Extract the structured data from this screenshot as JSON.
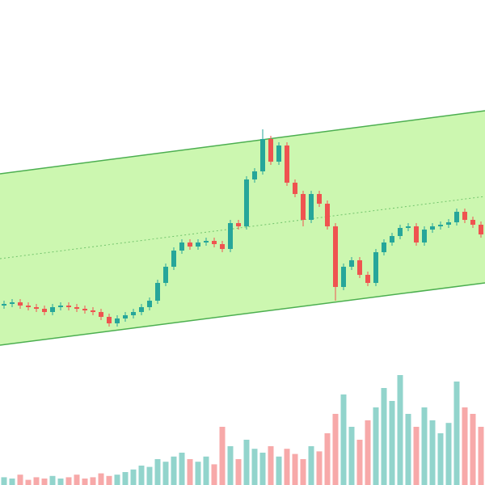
{
  "chart_data": {
    "type": "candlestick",
    "open": [
      15.5,
      16,
      16.5,
      15.5,
      15,
      14.5,
      13.5,
      15,
      15.5,
      15,
      14.5,
      14,
      13.5,
      12,
      10,
      11.5,
      12.5,
      13.5,
      15,
      17,
      22.5,
      27.5,
      32.5,
      35,
      33.75,
      35,
      35.5,
      34.5,
      33,
      41,
      40,
      54.5,
      57,
      67,
      60,
      65,
      53.5,
      50,
      42,
      50,
      47,
      40,
      21.25,
      27.5,
      29.5,
      25,
      22.5,
      32,
      35,
      37,
      39.5,
      40,
      35,
      39,
      40,
      40.5,
      41.25,
      44.5,
      42,
      40.5
    ],
    "high": [
      17,
      17.5,
      17.5,
      16.5,
      16,
      15.5,
      16,
      16.5,
      16.5,
      16,
      15.5,
      15,
      14.5,
      13,
      12.5,
      13.5,
      14.5,
      16,
      18,
      23.5,
      28.5,
      33.5,
      36,
      36,
      36,
      36.5,
      36.5,
      35.5,
      42,
      42,
      55.5,
      58,
      70,
      68,
      66,
      66,
      54.5,
      51,
      51,
      51,
      48,
      41,
      28.5,
      30.5,
      30.5,
      26,
      33,
      36,
      38,
      40.5,
      41,
      41,
      40,
      41,
      41.5,
      42.25,
      45.5,
      45.5,
      43,
      41.5
    ],
    "low": [
      14.5,
      15,
      14.5,
      14,
      13.5,
      12.5,
      12.5,
      14,
      14,
      13.5,
      13,
      12.5,
      11,
      9,
      9,
      10.5,
      11.5,
      12.5,
      14,
      16,
      21.5,
      26.5,
      31.5,
      32.75,
      32.75,
      34,
      33.5,
      32,
      32,
      39,
      39,
      53.5,
      56,
      59,
      59,
      52.5,
      49,
      40,
      41,
      46,
      39,
      17,
      20.25,
      26.5,
      24,
      21.5,
      21.5,
      31,
      34,
      36,
      38.5,
      34,
      34,
      38,
      39,
      39.5,
      40.25,
      41,
      39.5,
      36.5
    ],
    "close": [
      16,
      16.5,
      15.5,
      15,
      14.5,
      13.5,
      15,
      15.5,
      15,
      14.5,
      14,
      13.5,
      12,
      10,
      11.5,
      12.5,
      13.5,
      15,
      17,
      22.5,
      27.5,
      32.5,
      35,
      33.75,
      35,
      35.5,
      34.5,
      33,
      41,
      40,
      54.5,
      57,
      67,
      60,
      65,
      53.5,
      50,
      42,
      50,
      47,
      40,
      21.25,
      27.5,
      29.5,
      25,
      22.5,
      32,
      35,
      37,
      39.5,
      40,
      35,
      39,
      40,
      40.5,
      41.25,
      44.5,
      42,
      40.5,
      37.5
    ],
    "volume": [
      6,
      5,
      8,
      4,
      6,
      5,
      7,
      5,
      6,
      8,
      5,
      6,
      9,
      7,
      8,
      10,
      12,
      15,
      14,
      20,
      18,
      22,
      25,
      20,
      18,
      22,
      16,
      45,
      30,
      20,
      35,
      28,
      25,
      30,
      22,
      28,
      24,
      20,
      30,
      26,
      40,
      55,
      70,
      45,
      35,
      50,
      60,
      75,
      65,
      85,
      55,
      45,
      60,
      50,
      40,
      48,
      80,
      60,
      55,
      45
    ],
    "ylim": [
      0,
      110
    ],
    "volume_lim": [
      0,
      100
    ],
    "channel": {
      "upper": [
        56.25,
        75.75
      ],
      "middle": [
        30,
        49.25
      ],
      "lower": [
        3.25,
        22.5
      ],
      "fill": "#ccf7b0",
      "color": "#4caf50"
    },
    "up_color": "#26a69a",
    "down_color": "#ef5350",
    "volume_up_color": "#92d4cc",
    "volume_down_color": "#f7a9a9"
  }
}
